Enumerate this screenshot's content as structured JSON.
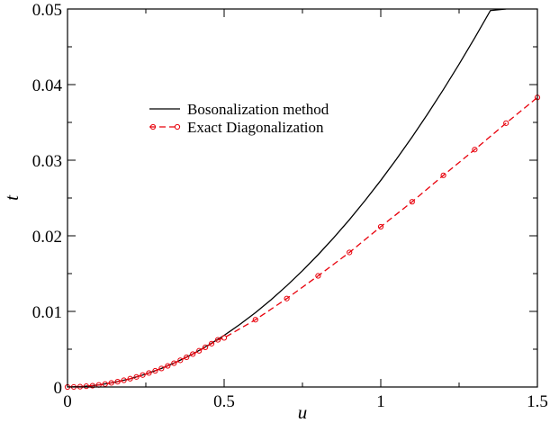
{
  "chart_data": {
    "type": "line",
    "title": "",
    "xlabel": "u",
    "ylabel": "t",
    "xlim": [
      0,
      1.5
    ],
    "ylim": [
      0,
      0.05
    ],
    "x_ticks": [
      0,
      0.5,
      1,
      1.5
    ],
    "x_tick_labels": [
      "0",
      "0.5",
      "1",
      "1.5"
    ],
    "y_ticks": [
      0,
      0.01,
      0.02,
      0.03,
      0.04,
      0.05
    ],
    "y_tick_labels": [
      "0",
      "0.01",
      "0.02",
      "0.03",
      "0.04",
      "0.05"
    ],
    "grid": false,
    "legend_position": "upper-left",
    "series": [
      {
        "name": "Bosonalization method",
        "style": "solid",
        "marker": "none",
        "color": "#000000",
        "x": [
          0,
          0.05,
          0.1,
          0.15,
          0.2,
          0.25,
          0.3,
          0.35,
          0.4,
          0.45,
          0.5,
          0.55,
          0.6,
          0.65,
          0.7,
          0.75,
          0.8,
          0.85,
          0.9,
          0.95,
          1.0,
          1.05,
          1.1,
          1.15,
          1.2,
          1.25,
          1.3,
          1.35,
          1.4
        ],
        "y": [
          0,
          7e-05,
          0.00027,
          0.00062,
          0.00109,
          0.00171,
          0.00246,
          0.00335,
          0.00437,
          0.00554,
          0.00683,
          0.00827,
          0.00984,
          0.01155,
          0.0134,
          0.01538,
          0.0175,
          0.01975,
          0.02214,
          0.02467,
          0.02733,
          0.03013,
          0.03307,
          0.03614,
          0.03935,
          0.0427,
          0.04618,
          0.0498,
          0.05
        ]
      },
      {
        "name": "Exact Diagonalization",
        "style": "dashed",
        "marker": "open-circle",
        "color": "#e8000b",
        "x": [
          0,
          0.02,
          0.04,
          0.06,
          0.08,
          0.1,
          0.12,
          0.14,
          0.16,
          0.18,
          0.2,
          0.22,
          0.24,
          0.26,
          0.28,
          0.3,
          0.32,
          0.34,
          0.36,
          0.38,
          0.4,
          0.42,
          0.44,
          0.46,
          0.48,
          0.5,
          0.6,
          0.7,
          0.8,
          0.9,
          1.0,
          1.1,
          1.2,
          1.3,
          1.4,
          1.5
        ],
        "y": [
          0,
          1e-05,
          4e-05,
          0.0001,
          0.00017,
          0.00027,
          0.00039,
          0.00054,
          0.0007,
          0.00089,
          0.0011,
          0.00133,
          0.00158,
          0.00185,
          0.00214,
          0.00245,
          0.00279,
          0.00315,
          0.00353,
          0.00393,
          0.00435,
          0.00479,
          0.00525,
          0.00573,
          0.00624,
          0.0065,
          0.0089,
          0.0117,
          0.0147,
          0.0178,
          0.0212,
          0.0245,
          0.028,
          0.0314,
          0.0349,
          0.0383
        ]
      }
    ]
  }
}
